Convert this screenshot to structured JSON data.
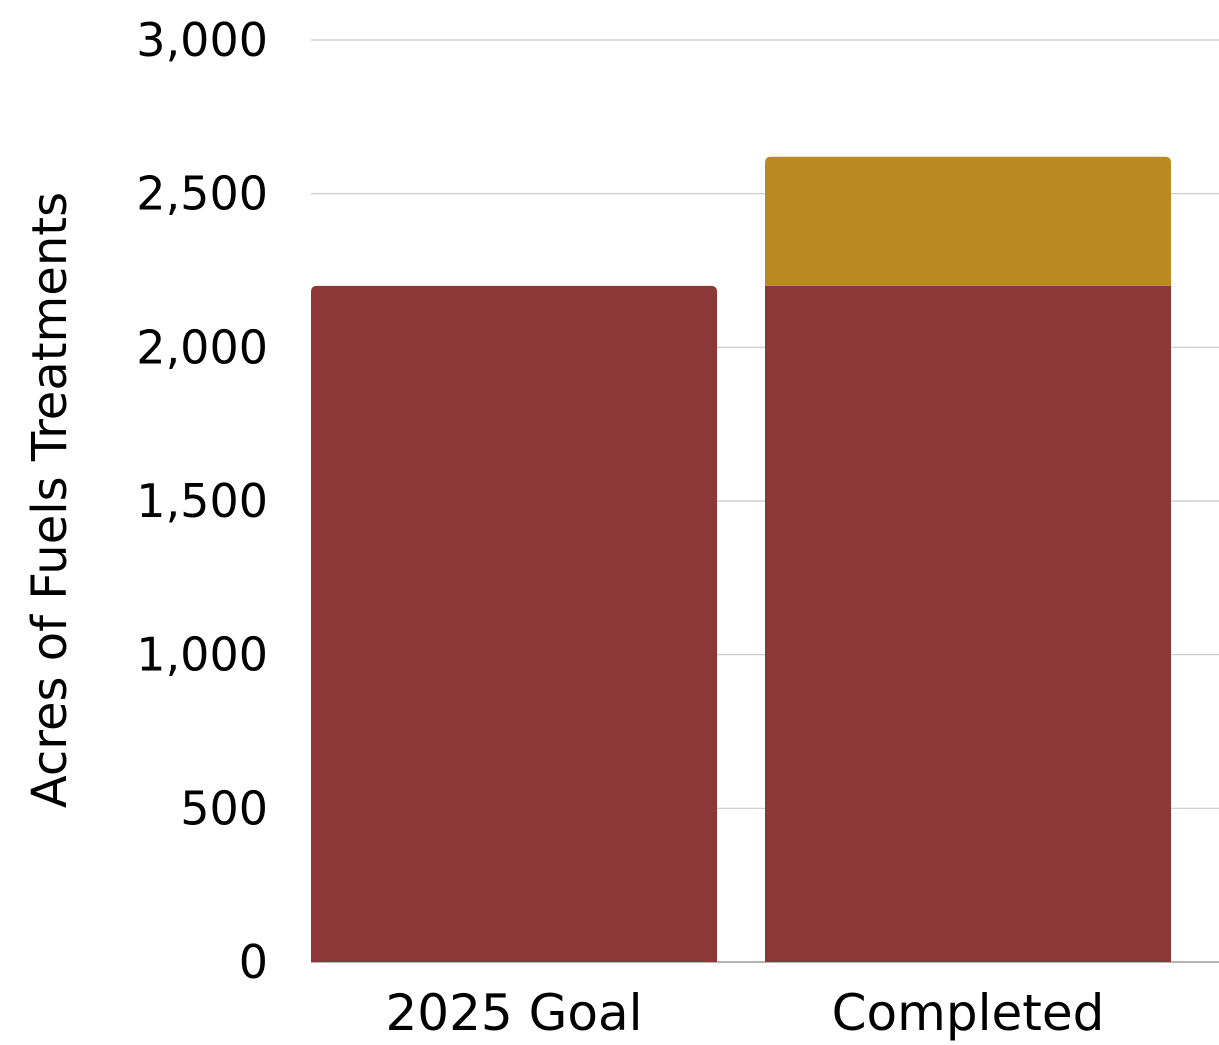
{
  "chart_data": {
    "type": "bar",
    "stacked": true,
    "title": "",
    "xlabel": "",
    "ylabel": "Acres of Fuels Treatments",
    "ylim": [
      0,
      3000
    ],
    "yticks": [
      0,
      500,
      1000,
      1500,
      2000,
      2500,
      3000
    ],
    "ytick_labels": [
      "0",
      "500",
      "1,000",
      "1,500",
      "2,000",
      "2,500",
      "3,000"
    ],
    "grid": true,
    "categories": [
      "2025 Goal",
      "Completed"
    ],
    "series": [
      {
        "values": [
          2200,
          2200
        ],
        "color": "#8c3839"
      },
      {
        "values": [
          0,
          420
        ],
        "color": "#b88a21"
      }
    ],
    "legend": "none"
  },
  "colors": {
    "grid": "#c8c8c8",
    "baseline": "#888888"
  }
}
